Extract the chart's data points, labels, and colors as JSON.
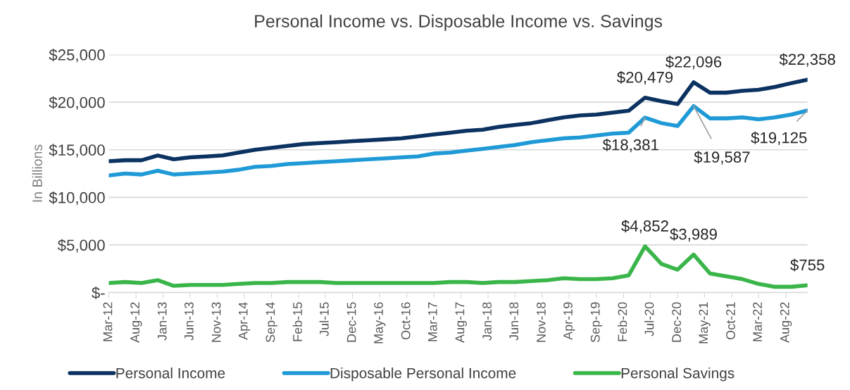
{
  "chart_data": {
    "type": "line",
    "title": "Personal Income vs. Disposable Income vs. Savings",
    "ylabel": "In Billions",
    "x": [
      "2012-03",
      "2012-06",
      "2012-09",
      "2012-12",
      "2013-03",
      "2013-06",
      "2013-09",
      "2013-12",
      "2014-03",
      "2014-06",
      "2014-09",
      "2014-12",
      "2015-03",
      "2015-06",
      "2015-09",
      "2015-12",
      "2016-03",
      "2016-06",
      "2016-09",
      "2016-12",
      "2017-03",
      "2017-06",
      "2017-09",
      "2017-12",
      "2018-03",
      "2018-06",
      "2018-09",
      "2018-12",
      "2019-03",
      "2019-06",
      "2019-09",
      "2019-12",
      "2020-03",
      "2020-06",
      "2020-09",
      "2020-12",
      "2021-03",
      "2021-06",
      "2021-09",
      "2021-12",
      "2022-03",
      "2022-06",
      "2022-09",
      "2022-12"
    ],
    "series": [
      {
        "name": "Personal Income",
        "color": "#0b3260",
        "values": [
          13800,
          13900,
          13900,
          14400,
          14000,
          14200,
          14300,
          14400,
          14700,
          15000,
          15200,
          15400,
          15600,
          15700,
          15800,
          15900,
          16000,
          16100,
          16200,
          16400,
          16600,
          16800,
          17000,
          17100,
          17400,
          17600,
          17800,
          18100,
          18400,
          18600,
          18700,
          18900,
          19100,
          20479,
          20100,
          19800,
          22096,
          21000,
          21000,
          21200,
          21300,
          21600,
          22000,
          22358
        ],
        "value_labels": [
          null,
          null,
          null,
          null,
          null,
          null,
          null,
          null,
          null,
          null,
          null,
          null,
          null,
          null,
          null,
          null,
          null,
          null,
          null,
          null,
          null,
          null,
          null,
          null,
          null,
          null,
          null,
          null,
          null,
          null,
          null,
          null,
          null,
          "$20,479",
          null,
          null,
          "$22,096",
          null,
          null,
          null,
          null,
          null,
          null,
          "$22,358"
        ]
      },
      {
        "name": "Disposable Personal Income",
        "color": "#1f9ad6",
        "values": [
          12300,
          12500,
          12400,
          12800,
          12400,
          12500,
          12600,
          12700,
          12900,
          13200,
          13300,
          13500,
          13600,
          13700,
          13800,
          13900,
          14000,
          14100,
          14200,
          14300,
          14600,
          14700,
          14900,
          15100,
          15300,
          15500,
          15800,
          16000,
          16200,
          16300,
          16500,
          16700,
          16800,
          18381,
          17800,
          17500,
          19587,
          18300,
          18300,
          18400,
          18200,
          18400,
          18700,
          19125
        ],
        "value_labels": [
          null,
          null,
          null,
          null,
          null,
          null,
          null,
          null,
          null,
          null,
          null,
          null,
          null,
          null,
          null,
          null,
          null,
          null,
          null,
          null,
          null,
          null,
          null,
          null,
          null,
          null,
          null,
          null,
          null,
          null,
          null,
          null,
          null,
          "$18,381",
          null,
          null,
          "$19,587",
          null,
          null,
          null,
          null,
          null,
          null,
          "$19,125"
        ]
      },
      {
        "name": "Personal Savings",
        "color": "#3ab54a",
        "values": [
          1000,
          1100,
          1000,
          1300,
          700,
          800,
          800,
          800,
          900,
          1000,
          1000,
          1100,
          1100,
          1100,
          1000,
          1000,
          1000,
          1000,
          1000,
          1000,
          1000,
          1100,
          1100,
          1000,
          1100,
          1100,
          1200,
          1300,
          1500,
          1400,
          1400,
          1500,
          1800,
          4852,
          3000,
          2400,
          3989,
          2000,
          1700,
          1400,
          900,
          600,
          600,
          755
        ],
        "value_labels": [
          null,
          null,
          null,
          null,
          null,
          null,
          null,
          null,
          null,
          null,
          null,
          null,
          null,
          null,
          null,
          null,
          null,
          null,
          null,
          null,
          null,
          null,
          null,
          null,
          null,
          null,
          null,
          null,
          null,
          null,
          null,
          null,
          null,
          "$4,852",
          null,
          null,
          "$3,989",
          null,
          null,
          null,
          null,
          null,
          null,
          "$755"
        ]
      }
    ],
    "xlim": [
      "2012-03",
      "2022-12"
    ],
    "xticks": [
      {
        "value": "2012-03",
        "label": "Mar-12"
      },
      {
        "value": "2012-08",
        "label": "Aug-12"
      },
      {
        "value": "2013-01",
        "label": "Jan-13"
      },
      {
        "value": "2013-06",
        "label": "Jun-13"
      },
      {
        "value": "2013-11",
        "label": "Nov-13"
      },
      {
        "value": "2014-04",
        "label": "Apr-14"
      },
      {
        "value": "2014-09",
        "label": "Sep-14"
      },
      {
        "value": "2015-02",
        "label": "Feb-15"
      },
      {
        "value": "2015-07",
        "label": "Jul-15"
      },
      {
        "value": "2015-12",
        "label": "Dec-15"
      },
      {
        "value": "2016-05",
        "label": "May-16"
      },
      {
        "value": "2016-10",
        "label": "Oct-16"
      },
      {
        "value": "2017-03",
        "label": "Mar-17"
      },
      {
        "value": "2017-08",
        "label": "Aug-17"
      },
      {
        "value": "2018-01",
        "label": "Jan-18"
      },
      {
        "value": "2018-06",
        "label": "Jun-18"
      },
      {
        "value": "2018-11",
        "label": "Nov-18"
      },
      {
        "value": "2019-04",
        "label": "Apr-19"
      },
      {
        "value": "2019-09",
        "label": "Sep-19"
      },
      {
        "value": "2020-02",
        "label": "Feb-20"
      },
      {
        "value": "2020-07",
        "label": "Jul-20"
      },
      {
        "value": "2020-12",
        "label": "Dec-20"
      },
      {
        "value": "2021-05",
        "label": "May-21"
      },
      {
        "value": "2021-10",
        "label": "Oct-21"
      },
      {
        "value": "2022-03",
        "label": "Mar-22"
      },
      {
        "value": "2022-08",
        "label": "Aug-22"
      }
    ],
    "ylim": [
      0,
      25000
    ],
    "yticks": [
      {
        "value": 0,
        "label": "$-"
      },
      {
        "value": 5000,
        "label": "$5,000"
      },
      {
        "value": 10000,
        "label": "$10,000"
      },
      {
        "value": 15000,
        "label": "$15,000"
      },
      {
        "value": 20000,
        "label": "$20,000"
      },
      {
        "value": 25000,
        "label": "$25,000"
      }
    ],
    "grid": "y",
    "legend": "bottom",
    "marker": "none",
    "line_style": "solid"
  }
}
